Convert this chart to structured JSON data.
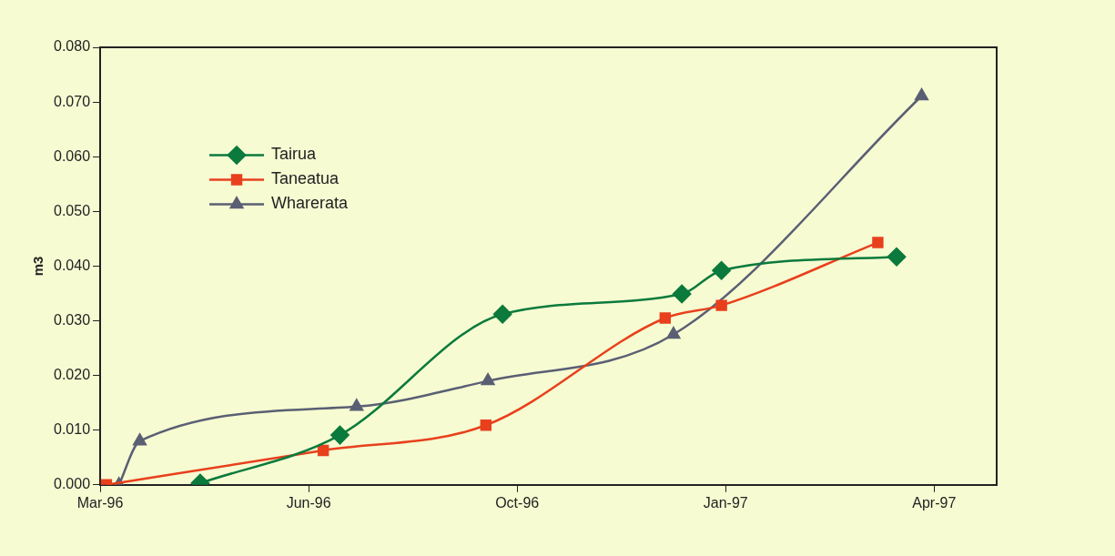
{
  "chart_data": {
    "type": "line",
    "ylabel": "m3",
    "xlim": [
      "1996-03-20",
      "1997-05-24"
    ],
    "xticks": [
      {
        "value": "1996-03-20",
        "label": "Mar-96"
      },
      {
        "value": "1996-06-28",
        "label": "Jun-96"
      },
      {
        "value": "1996-10-06",
        "label": "Oct-96"
      },
      {
        "value": "1997-01-14",
        "label": "Jan-97"
      },
      {
        "value": "1997-04-24",
        "label": "Apr-97"
      }
    ],
    "ylim": [
      0,
      0.08
    ],
    "yticks": [
      {
        "value": 0,
        "label": "0.000"
      },
      {
        "value": 0.01,
        "label": "0.010"
      },
      {
        "value": 0.02,
        "label": "0.020"
      },
      {
        "value": 0.03,
        "label": "0.030"
      },
      {
        "value": 0.04,
        "label": "0.040"
      },
      {
        "value": 0.05,
        "label": "0.050"
      },
      {
        "value": 0.06,
        "label": "0.060"
      },
      {
        "value": 0.07,
        "label": "0.070"
      },
      {
        "value": 0.08,
        "label": "0.080"
      }
    ],
    "grid": false,
    "legend": "top left",
    "line_style": "solid",
    "series": [
      {
        "name": "Tairua",
        "color": "#0b7a3c",
        "marker": "diamond",
        "x": [
          "1996-05-07",
          "1996-07-13",
          "1996-09-29",
          "1996-12-24",
          "1997-01-12",
          "1997-04-06"
        ],
        "values": [
          0.0003,
          0.0091,
          0.0312,
          0.0349,
          0.0392,
          0.0417
        ]
      },
      {
        "name": "Taneatua",
        "color": "#e8401c",
        "marker": "square",
        "x": [
          "1996-03-23",
          "1996-07-05",
          "1996-09-21",
          "1996-12-16",
          "1997-01-12",
          "1997-03-28"
        ],
        "values": [
          0,
          0.0063,
          0.0109,
          0.0305,
          0.0328,
          0.0443
        ]
      },
      {
        "name": "Wharerata",
        "color": "#5a5f73",
        "marker": "triangle",
        "x": [
          "1996-03-29",
          "1996-04-08",
          "1996-07-21",
          "1996-09-22",
          "1996-12-20",
          "1997-04-18"
        ],
        "values": [
          0,
          0.008,
          0.0143,
          0.019,
          0.0275,
          0.0711
        ]
      }
    ]
  }
}
